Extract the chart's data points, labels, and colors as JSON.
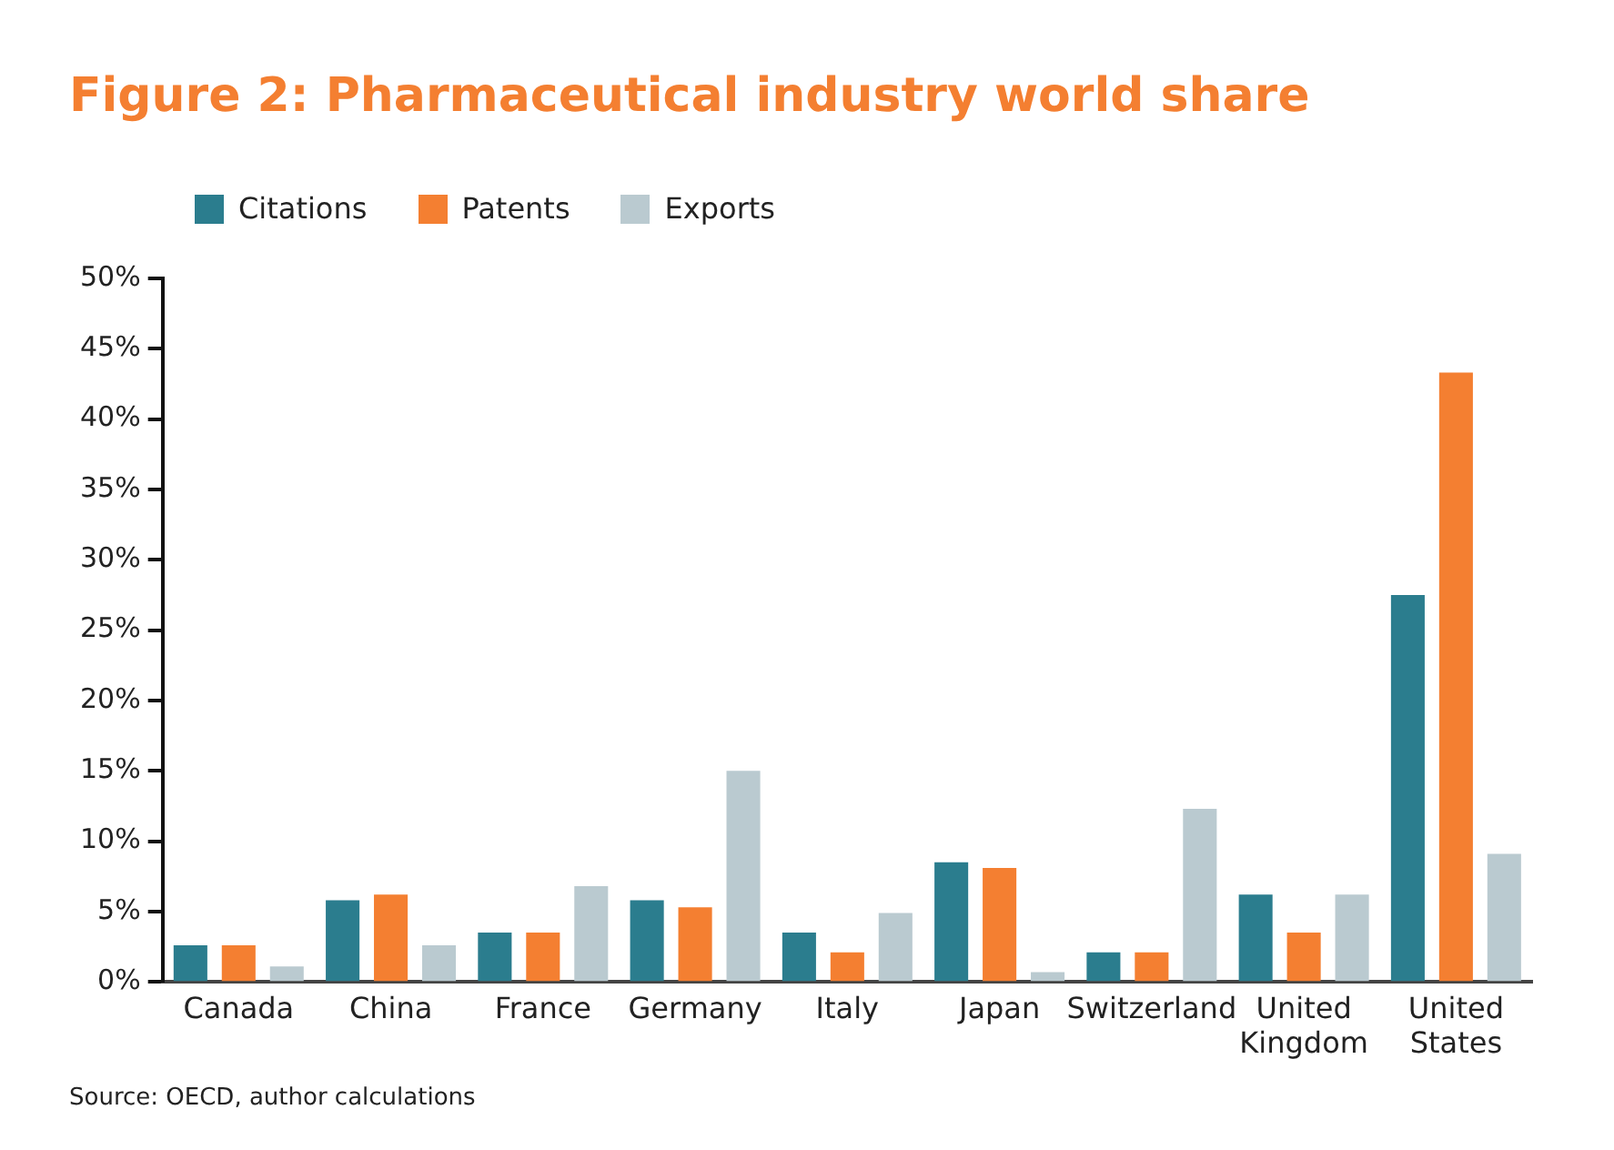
{
  "chart_data": {
    "type": "bar",
    "title": "Figure 2: Pharmaceutical industry world share",
    "categories": [
      "Canada",
      "China",
      "France",
      "Germany",
      "Italy",
      "Japan",
      "Switzerland",
      "United Kingdom",
      "United States"
    ],
    "series": [
      {
        "name": "Citations",
        "color": "#2b7d8e",
        "values": [
          2.6,
          5.8,
          3.5,
          5.8,
          3.5,
          8.5,
          2.1,
          6.2,
          27.5
        ]
      },
      {
        "name": "Patents",
        "color": "#f47f31",
        "values": [
          2.6,
          6.2,
          3.5,
          5.3,
          2.1,
          8.1,
          2.1,
          3.5,
          43.3
        ]
      },
      {
        "name": "Exports",
        "color": "#bacad0",
        "values": [
          1.1,
          2.6,
          6.8,
          15.0,
          4.9,
          0.7,
          12.3,
          6.2,
          9.1
        ]
      }
    ],
    "ylim": [
      0,
      50
    ],
    "yticks": [
      {
        "value": 0,
        "label": "0%"
      },
      {
        "value": 5,
        "label": "5%"
      },
      {
        "value": 10,
        "label": "10%"
      },
      {
        "value": 15,
        "label": "15%"
      },
      {
        "value": 20,
        "label": "20%"
      },
      {
        "value": 25,
        "label": "25%"
      },
      {
        "value": 30,
        "label": "30%"
      },
      {
        "value": 35,
        "label": "35%"
      },
      {
        "value": 40,
        "label": "40%"
      },
      {
        "value": 45,
        "label": "45%"
      },
      {
        "value": 50,
        "label": "50%"
      }
    ],
    "grid": false,
    "legend": "top left",
    "annotations": [
      "Source: OECD, author calculations"
    ]
  }
}
